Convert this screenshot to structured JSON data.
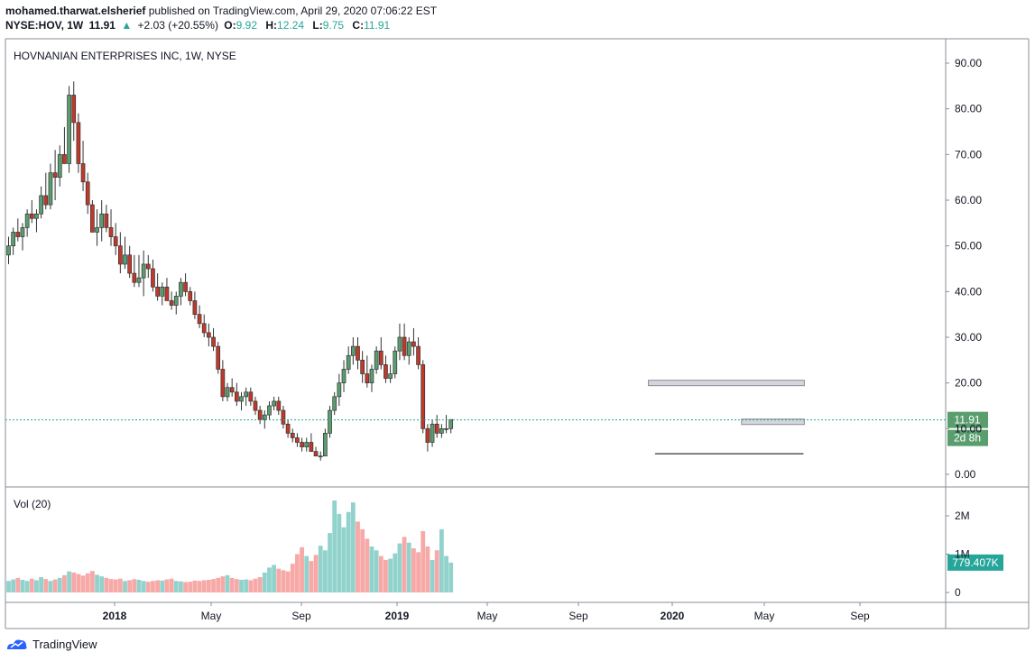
{
  "header": {
    "author": "mohamed.tharwat.elsherief",
    "published_text": "published on TradingView.com, April 29, 2020 07:06:22 EST",
    "symbol": "NYSE:HOV, 1W",
    "last": "11.91",
    "change": "+2.03 (+20.55%)",
    "o_label": "O:",
    "o_val": "9.92",
    "h_label": "H:",
    "h_val": "12.24",
    "l_label": "L:",
    "l_val": "9.75",
    "c_label": "C:",
    "c_val": "11.91"
  },
  "chart_data": {
    "type": "candlestick",
    "title": "HOVNANIAN ENTERPRISES INC, 1W, NYSE",
    "price_axis": {
      "min": 0,
      "max": 90,
      "ticks": [
        "90.00",
        "80.00",
        "70.00",
        "60.00",
        "50.00",
        "40.00",
        "30.00",
        "20.00",
        "10.00",
        "0.00"
      ]
    },
    "last_price_label": "11.91",
    "countdown_label": "2d 8h",
    "volume": {
      "label": "Vol (20)",
      "ticks": [
        "2M",
        "1M",
        "0"
      ],
      "last_label": "779.407K"
    },
    "x_ticks": [
      "2018",
      "May",
      "Sep",
      "2019",
      "May",
      "Sep",
      "2020",
      "May",
      "Sep"
    ],
    "candles": [
      [
        48,
        52,
        46,
        50
      ],
      [
        50,
        54,
        48,
        53
      ],
      [
        53,
        56,
        51,
        52
      ],
      [
        52,
        55,
        49,
        54
      ],
      [
        54,
        58,
        52,
        57
      ],
      [
        57,
        60,
        55,
        56
      ],
      [
        56,
        58,
        53,
        57
      ],
      [
        57,
        63,
        56,
        61
      ],
      [
        61,
        66,
        58,
        59
      ],
      [
        59,
        68,
        58,
        66
      ],
      [
        66,
        71,
        60,
        65
      ],
      [
        65,
        72,
        63,
        70
      ],
      [
        70,
        76,
        68,
        68
      ],
      [
        68,
        85,
        66,
        83
      ],
      [
        83,
        86,
        73,
        77
      ],
      [
        77,
        79,
        66,
        68
      ],
      [
        68,
        73,
        62,
        64
      ],
      [
        64,
        66,
        57,
        59
      ],
      [
        59,
        60,
        53,
        53
      ],
      [
        53,
        58,
        50,
        54
      ],
      [
        54,
        60,
        51,
        57
      ],
      [
        57,
        59,
        53,
        54
      ],
      [
        54,
        58,
        50,
        52
      ],
      [
        52,
        55,
        48,
        50
      ],
      [
        50,
        53,
        44,
        46
      ],
      [
        46,
        52,
        45,
        48
      ],
      [
        48,
        50,
        43,
        44
      ],
      [
        44,
        48,
        41,
        42
      ],
      [
        42,
        48,
        41,
        43
      ],
      [
        43,
        49,
        39,
        46
      ],
      [
        46,
        48,
        43,
        45
      ],
      [
        45,
        47,
        40,
        41
      ],
      [
        41,
        44,
        38,
        39
      ],
      [
        39,
        42,
        37,
        41
      ],
      [
        41,
        43,
        38,
        38
      ],
      [
        38,
        40,
        36,
        37
      ],
      [
        37,
        40,
        35,
        39
      ],
      [
        39,
        43,
        37,
        42
      ],
      [
        42,
        44,
        39,
        40
      ],
      [
        40,
        41,
        37,
        38
      ],
      [
        38,
        40,
        34,
        35
      ],
      [
        35,
        37,
        32,
        33
      ],
      [
        33,
        35,
        30,
        31
      ],
      [
        31,
        33,
        28,
        30
      ],
      [
        30,
        32,
        27,
        28
      ],
      [
        28,
        29,
        22,
        23
      ],
      [
        23,
        25,
        16,
        17
      ],
      [
        17,
        20,
        16,
        19
      ],
      [
        19,
        21,
        17,
        18
      ],
      [
        18,
        20,
        15,
        16
      ],
      [
        16,
        18,
        14,
        17
      ],
      [
        17,
        19,
        15,
        18
      ],
      [
        18,
        19,
        15,
        16
      ],
      [
        16,
        17,
        13,
        14
      ],
      [
        14,
        15,
        11,
        12
      ],
      [
        12,
        14,
        10,
        13
      ],
      [
        13,
        16,
        12,
        15
      ],
      [
        15,
        17,
        14,
        16
      ],
      [
        16,
        17,
        13,
        14
      ],
      [
        14,
        15,
        10,
        11
      ],
      [
        11,
        12,
        8,
        9
      ],
      [
        9,
        10,
        7,
        8
      ],
      [
        8,
        9,
        6,
        7
      ],
      [
        7,
        8,
        5,
        6
      ],
      [
        6,
        8,
        5,
        7
      ],
      [
        7,
        9,
        5,
        5
      ],
      [
        5,
        6,
        4,
        4
      ],
      [
        4,
        5,
        3,
        4
      ],
      [
        4,
        10,
        4,
        9
      ],
      [
        9,
        15,
        8,
        14
      ],
      [
        14,
        18,
        13,
        17
      ],
      [
        17,
        22,
        15,
        20
      ],
      [
        20,
        25,
        18,
        23
      ],
      [
        23,
        28,
        22,
        26
      ],
      [
        26,
        30,
        24,
        28
      ],
      [
        28,
        30,
        23,
        25
      ],
      [
        25,
        27,
        20,
        22
      ],
      [
        22,
        26,
        19,
        20
      ],
      [
        20,
        24,
        18,
        23
      ],
      [
        23,
        28,
        22,
        27
      ],
      [
        27,
        30,
        23,
        24
      ],
      [
        24,
        26,
        20,
        21
      ],
      [
        21,
        24,
        20,
        22
      ],
      [
        22,
        28,
        21,
        27
      ],
      [
        27,
        33,
        25,
        30
      ],
      [
        30,
        33,
        25,
        26
      ],
      [
        26,
        30,
        24,
        29
      ],
      [
        29,
        32,
        26,
        28
      ],
      [
        28,
        30,
        23,
        24
      ],
      [
        24,
        25,
        9,
        10
      ],
      [
        10,
        11,
        5,
        7
      ],
      [
        7,
        12,
        6,
        11
      ],
      [
        11,
        13,
        8,
        9
      ],
      [
        9,
        11,
        8,
        10
      ],
      [
        10,
        13,
        9,
        10
      ],
      [
        10,
        12,
        9,
        12
      ]
    ],
    "levels": [
      {
        "from": 140,
        "to": 168,
        "price": 4.5
      },
      {
        "from": 138,
        "to": 168,
        "price": 20
      },
      {
        "from": 158,
        "to": 168,
        "price": 11.5
      }
    ],
    "volumes": [
      0.3,
      0.34,
      0.38,
      0.33,
      0.3,
      0.36,
      0.32,
      0.4,
      0.35,
      0.3,
      0.34,
      0.38,
      0.45,
      0.55,
      0.52,
      0.48,
      0.44,
      0.5,
      0.56,
      0.46,
      0.42,
      0.38,
      0.35,
      0.34,
      0.36,
      0.3,
      0.32,
      0.35,
      0.33,
      0.3,
      0.28,
      0.3,
      0.32,
      0.31,
      0.34,
      0.36,
      0.3,
      0.29,
      0.27,
      0.28,
      0.31,
      0.3,
      0.32,
      0.33,
      0.35,
      0.38,
      0.42,
      0.45,
      0.38,
      0.35,
      0.33,
      0.34,
      0.32,
      0.36,
      0.4,
      0.52,
      0.65,
      0.72,
      0.62,
      0.58,
      0.55,
      0.75,
      1.0,
      1.18,
      0.95,
      0.82,
      0.98,
      1.22,
      1.1,
      1.55,
      2.4,
      2.05,
      1.7,
      2.1,
      2.35,
      1.85,
      1.65,
      1.4,
      1.2,
      1.1,
      0.95,
      0.85,
      0.88,
      1.02,
      1.28,
      1.45,
      1.3,
      1.15,
      1.05,
      1.6,
      1.2,
      0.85,
      1.1,
      1.65,
      0.95,
      0.78
    ]
  },
  "footer": {
    "brand": "TradingView"
  },
  "colors": {
    "up": "#26a69a",
    "down": "#ef5350",
    "up_fill": "#5a9e6f",
    "down_fill": "#c0392b",
    "line": "#555555"
  }
}
